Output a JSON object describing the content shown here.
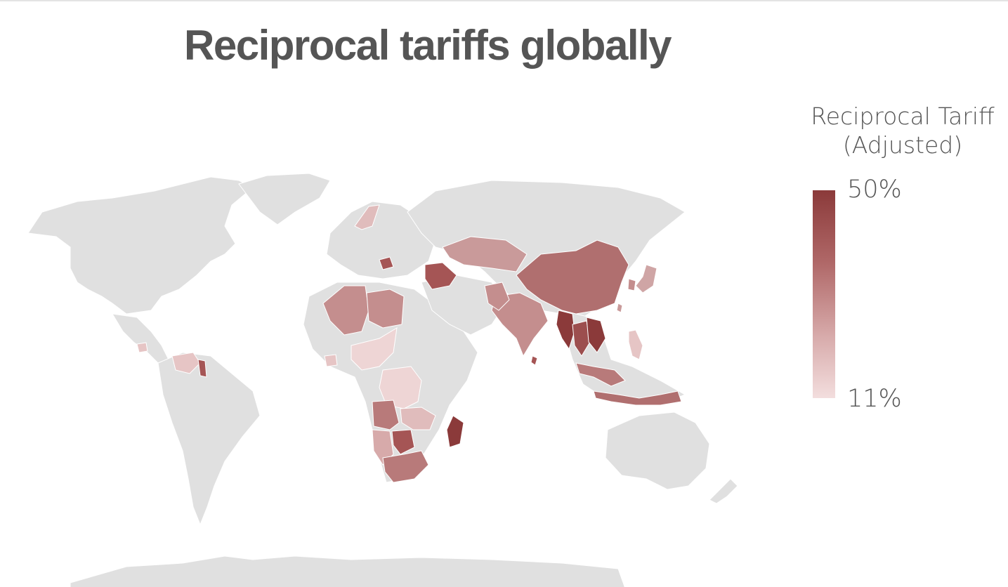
{
  "title": "Reciprocal tariffs globally",
  "legend": {
    "title_line1": "Reciprocal Tariff",
    "title_line2": "(Adjusted)",
    "max_label": "50%",
    "min_label": "11%",
    "color_max": "#8b3a3a",
    "color_min": "#f3dede"
  },
  "colors": {
    "land": "#e0e0e0",
    "border": "#ffffff",
    "title_text": "#555555"
  }
}
